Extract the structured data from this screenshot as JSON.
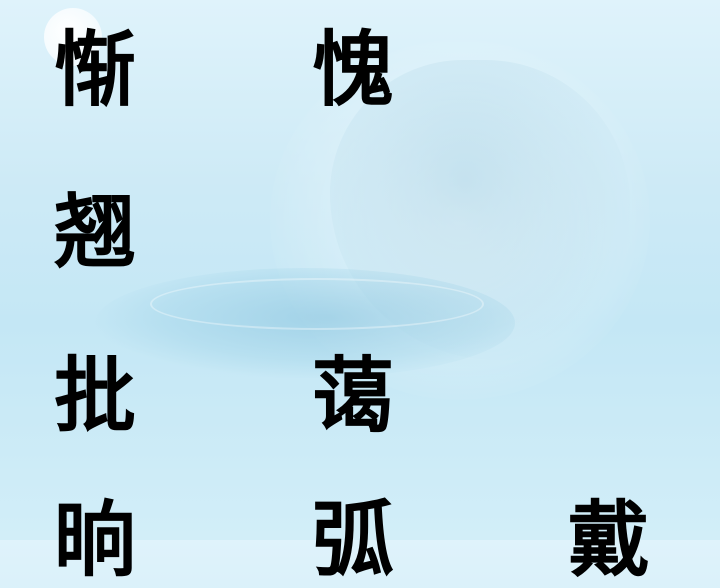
{
  "slide": {
    "characters": [
      {
        "id": "c1",
        "text": "惭"
      },
      {
        "id": "c2",
        "text": "愧"
      },
      {
        "id": "c3",
        "text": "翘"
      },
      {
        "id": "c4",
        "text": "批"
      },
      {
        "id": "c5",
        "text": "蔼"
      },
      {
        "id": "c6",
        "text": "晌"
      },
      {
        "id": "c7",
        "text": "弧"
      },
      {
        "id": "c8",
        "text": "戴"
      }
    ]
  },
  "colors": {
    "text": "#000000",
    "background": "#cdeaf6"
  }
}
